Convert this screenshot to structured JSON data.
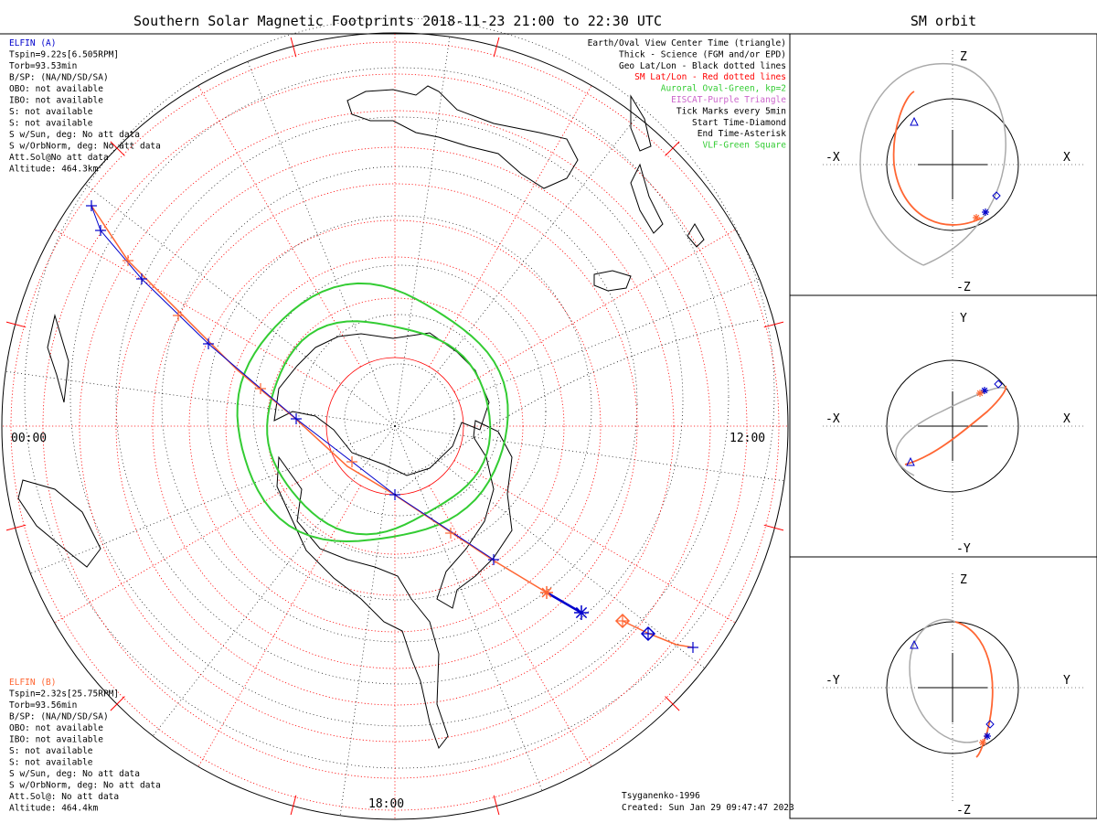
{
  "title": "Southern Solar Magnetic Footprints 2018-11-23 21:00 to 22:30 UTC",
  "side_title": "SM orbit",
  "legend": [
    {
      "text": "Earth/Oval View Center Time (triangle)",
      "color": "#000000"
    },
    {
      "text": "Thick - Science (FGM and/or EPD)",
      "color": "#000000"
    },
    {
      "text": "Geo Lat/Lon - Black dotted lines",
      "color": "#000000"
    },
    {
      "text": "SM Lat/Lon - Red dotted lines",
      "color": "#ff0000"
    },
    {
      "text": "Auroral Oval-Green, kp=2",
      "color": "#33cc33"
    },
    {
      "text": "EISCAT-Purple Triangle",
      "color": "#cc66cc"
    },
    {
      "text": "Tick Marks every 5min",
      "color": "#000000"
    },
    {
      "text": "Start Time-Diamond",
      "color": "#000000"
    },
    {
      "text": "End Time-Asterisk",
      "color": "#000000"
    },
    {
      "text": "VLF-Green Square",
      "color": "#33cc33"
    }
  ],
  "elfin_a": {
    "name": "ELFIN (A)",
    "color": "#0000cc",
    "lines": [
      "Tspin=9.22s[6.505RPM]",
      "Torb=93.53min",
      "B/SP: (NA/ND/SD/SA)",
      "OBO: not available",
      "IBO: not available",
      "S: not available",
      "S: not available",
      "S w/Sun, deg: No att data",
      "S w/OrbNorm, deg: No att data",
      "Att.Sol@No att data",
      "Altitude: 464.3km"
    ]
  },
  "elfin_b": {
    "name": "ELFIN (B)",
    "color": "#ff6633",
    "lines": [
      "Tspin=2.32s[25.75RPM]",
      "Torb=93.56min",
      "B/SP: (NA/ND/SD/SA)",
      "OBO: not available",
      "IBO: not available",
      "S: not available",
      "S: not available",
      "S w/Sun, deg: No att data",
      "S w/OrbNorm, deg: No att data",
      "Att.Sol@: No att data",
      "Altitude: 464.4km"
    ]
  },
  "model": "Tsyganenko-1996",
  "created": "Created: Sun Jan 29 09:47:47 2023",
  "mlt_labels": {
    "left": "00:00",
    "right": "12:00",
    "bottom": "18:00"
  },
  "orbit_panels": [
    {
      "left": "-X",
      "right": "X",
      "top": "Z",
      "bottom": "-Z"
    },
    {
      "left": "-X",
      "right": "X",
      "top": "Y",
      "bottom": "-Y"
    },
    {
      "left": "-Y",
      "right": "Y",
      "top": "Z",
      "bottom": "-Z"
    }
  ],
  "colors": {
    "elfin_a": "#0000cc",
    "elfin_b": "#ff6633",
    "oval": "#33cc33",
    "sm_grid": "#ff0000",
    "geo_grid": "#000000"
  },
  "chart_data": {
    "type": "polar-map",
    "projection": "south polar, SM coordinates",
    "kp": 2,
    "start_time": "2018-11-23 21:00 UTC",
    "end_time": "2018-11-23 22:30 UTC",
    "tick_interval_min": 5,
    "mlt_axis": [
      "00:00",
      "12:00",
      "18:00"
    ]
  }
}
